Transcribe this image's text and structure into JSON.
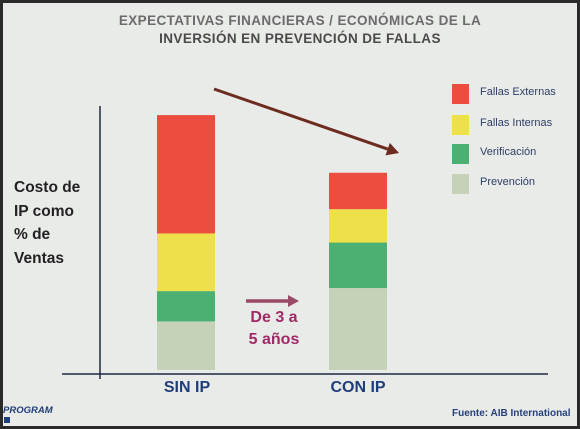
{
  "title": {
    "line1": "EXPECTATIVAS FINANCIERAS / ECONÓMICAS DE LA",
    "line2": "INVERSIÓN EN PREVENCIÓN DE FALLAS"
  },
  "chart_data": {
    "type": "bar",
    "stacked": true,
    "categories": [
      "SIN IP",
      "CON IP"
    ],
    "series": [
      {
        "name": "Prevención",
        "color": "#c5d2b8",
        "values": [
          16,
          27
        ]
      },
      {
        "name": "Verificación",
        "color": "#4cb072",
        "values": [
          10,
          15
        ]
      },
      {
        "name": "Fallas Internas",
        "color": "#ede04a",
        "values": [
          19,
          11
        ]
      },
      {
        "name": "Fallas Externas",
        "color": "#ec4d3f",
        "values": [
          39,
          12
        ]
      }
    ],
    "ylabel": "Costo de\nIP como\n% de\nVentas",
    "ylim": [
      0,
      87
    ],
    "legend_position": "right",
    "grid": false,
    "annotation": "De 3 a\n5 años",
    "arrow_color": "#9a4a68",
    "trend_arrow_color": "#6e2b1f"
  },
  "source": "Fuente: AIB International",
  "logo_text": "PROGRAM",
  "colors": {
    "background": "#e9ebe8",
    "axis": "#1f2a44",
    "category_label": "#1f3d78"
  }
}
